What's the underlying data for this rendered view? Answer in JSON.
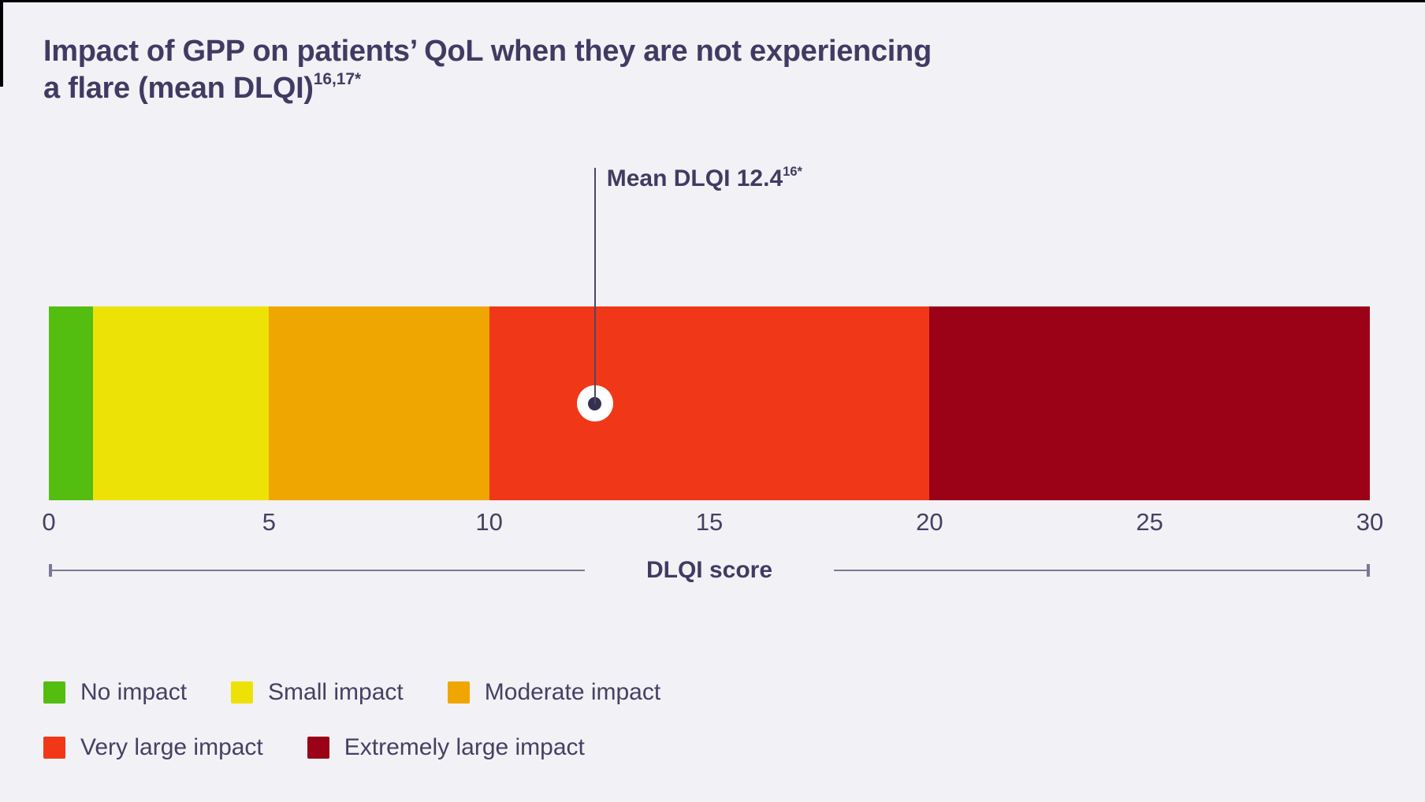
{
  "title": {
    "line1": "Impact of GPP on patients’ QoL when they are not experiencing",
    "line2": "a flare (mean DLQI)",
    "superscript": "16,17*"
  },
  "chart_data": {
    "type": "bar",
    "subtype": "banded-scale-bar",
    "title": "Impact of GPP on patients’ QoL when they are not experiencing a flare (mean DLQI)",
    "xlabel": "DLQI score",
    "axis": {
      "min": 0,
      "max": 30,
      "ticks": [
        0,
        5,
        10,
        15,
        20,
        25,
        30
      ]
    },
    "mean_marker": {
      "label": "Mean DLQI 12.4",
      "superscript": "16*",
      "value": 12.4
    },
    "bands": [
      {
        "label": "No impact",
        "from": 0,
        "to": 1,
        "color": "#53bd10"
      },
      {
        "label": "Small impact",
        "from": 1,
        "to": 5,
        "color": "#ede206"
      },
      {
        "label": "Moderate impact",
        "from": 5,
        "to": 10,
        "color": "#efa600"
      },
      {
        "label": "Very large impact",
        "from": 10,
        "to": 20,
        "color": "#f03818"
      },
      {
        "label": "Extremely large impact",
        "from": 20,
        "to": 30,
        "color": "#9b0117"
      }
    ]
  },
  "legend": {
    "rows": [
      [
        0,
        1,
        2
      ],
      [
        3,
        4
      ]
    ]
  },
  "colors": {
    "background": "#f2f1f5",
    "text": "#413b63",
    "leader_line": "#4c4669",
    "axis_line": "#7d7793",
    "marker_fill": "#ffffff",
    "marker_dot": "#353050",
    "edge_border": "#000000"
  }
}
